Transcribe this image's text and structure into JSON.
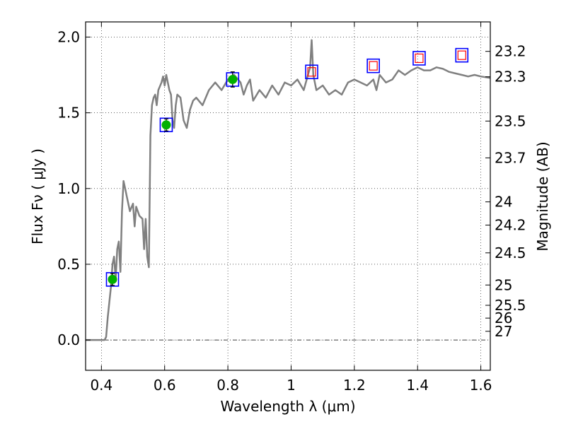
{
  "chart_data": {
    "type": "line",
    "xlabel": "Wavelength  λ (μm)",
    "ylabel": "Flux  Fν  ( μJy )",
    "ylabel2": "Magnitude (AB)",
    "xlim": [
      0.35,
      1.63
    ],
    "ylim": [
      -0.2,
      2.1
    ],
    "grid": true,
    "x_ticks": [
      {
        "value": 0.4,
        "label": "0.4"
      },
      {
        "value": 0.6,
        "label": "0.6"
      },
      {
        "value": 0.8,
        "label": "0.8"
      },
      {
        "value": 1.0,
        "label": "1"
      },
      {
        "value": 1.2,
        "label": "1.2"
      },
      {
        "value": 1.4,
        "label": "1.4"
      },
      {
        "value": 1.6,
        "label": "1.6"
      }
    ],
    "y_ticks": [
      {
        "value": 0.0,
        "label": "0.0"
      },
      {
        "value": 0.5,
        "label": "0.5"
      },
      {
        "value": 1.0,
        "label": "1.0"
      },
      {
        "value": 1.5,
        "label": "1.5"
      },
      {
        "value": 2.0,
        "label": "2.0"
      }
    ],
    "mag_ticks": [
      {
        "flux": 1.9055,
        "label": "23.2"
      },
      {
        "flux": 1.7378,
        "label": "23.3"
      },
      {
        "flux": 1.4454,
        "label": "23.5"
      },
      {
        "flux": 1.2023,
        "label": "23.7"
      },
      {
        "flux": 0.912,
        "label": "24"
      },
      {
        "flux": 0.7586,
        "label": "24.2"
      },
      {
        "flux": 0.5754,
        "label": "24.5"
      },
      {
        "flux": 0.3631,
        "label": "25"
      },
      {
        "flux": 0.2291,
        "label": "25.5"
      },
      {
        "flux": 0.1445,
        "label": "26"
      },
      {
        "flux": 0.0575,
        "label": "27"
      }
    ],
    "sed_curve": {
      "color": "#808080",
      "x": [
        0.35,
        0.4,
        0.41,
        0.415,
        0.42,
        0.43,
        0.435,
        0.44,
        0.445,
        0.45,
        0.455,
        0.46,
        0.465,
        0.47,
        0.475,
        0.48,
        0.49,
        0.5,
        0.505,
        0.51,
        0.52,
        0.53,
        0.535,
        0.54,
        0.545,
        0.55,
        0.555,
        0.56,
        0.565,
        0.57,
        0.575,
        0.58,
        0.59,
        0.595,
        0.6,
        0.605,
        0.61,
        0.615,
        0.62,
        0.625,
        0.63,
        0.635,
        0.64,
        0.65,
        0.66,
        0.67,
        0.68,
        0.69,
        0.7,
        0.72,
        0.74,
        0.76,
        0.78,
        0.8,
        0.82,
        0.84,
        0.85,
        0.86,
        0.87,
        0.88,
        0.9,
        0.92,
        0.94,
        0.96,
        0.98,
        1.0,
        1.02,
        1.04,
        1.06,
        1.065,
        1.07,
        1.08,
        1.1,
        1.12,
        1.14,
        1.16,
        1.18,
        1.2,
        1.22,
        1.24,
        1.26,
        1.27,
        1.28,
        1.3,
        1.32,
        1.34,
        1.36,
        1.38,
        1.4,
        1.42,
        1.44,
        1.46,
        1.48,
        1.5,
        1.52,
        1.54,
        1.56,
        1.58,
        1.6,
        1.63
      ],
      "y": [
        0.0,
        0.0,
        0.0,
        0.02,
        0.15,
        0.35,
        0.5,
        0.55,
        0.4,
        0.6,
        0.65,
        0.45,
        0.85,
        1.05,
        1.0,
        0.95,
        0.85,
        0.9,
        0.75,
        0.88,
        0.82,
        0.8,
        0.6,
        0.8,
        0.55,
        0.48,
        1.35,
        1.55,
        1.6,
        1.62,
        1.55,
        1.65,
        1.7,
        1.74,
        1.68,
        1.75,
        1.7,
        1.65,
        1.62,
        1.45,
        1.4,
        1.55,
        1.62,
        1.6,
        1.45,
        1.4,
        1.52,
        1.58,
        1.6,
        1.55,
        1.65,
        1.7,
        1.65,
        1.72,
        1.75,
        1.7,
        1.62,
        1.68,
        1.72,
        1.58,
        1.65,
        1.6,
        1.68,
        1.62,
        1.7,
        1.68,
        1.72,
        1.65,
        1.8,
        1.98,
        1.75,
        1.65,
        1.68,
        1.62,
        1.65,
        1.62,
        1.7,
        1.72,
        1.7,
        1.68,
        1.72,
        1.65,
        1.75,
        1.7,
        1.72,
        1.78,
        1.75,
        1.78,
        1.8,
        1.78,
        1.78,
        1.8,
        1.79,
        1.77,
        1.76,
        1.75,
        1.74,
        1.75,
        1.74,
        1.73
      ]
    },
    "photometry_points": [
      {
        "x": 0.435,
        "y": 0.4,
        "yerr": 0.04,
        "color": "#00b000"
      },
      {
        "x": 0.605,
        "y": 1.42,
        "yerr": 0.04,
        "color": "#00b000"
      },
      {
        "x": 0.815,
        "y": 1.72,
        "yerr": 0.05,
        "color": "#00b000"
      }
    ],
    "model_boxes": [
      {
        "x": 0.435,
        "y": 0.4
      },
      {
        "x": 0.605,
        "y": 1.42
      },
      {
        "x": 0.815,
        "y": 1.72
      },
      {
        "x": 1.065,
        "y": 1.77
      },
      {
        "x": 1.26,
        "y": 1.81
      },
      {
        "x": 1.405,
        "y": 1.86
      },
      {
        "x": 1.54,
        "y": 1.88
      }
    ],
    "upper_limit_squares": [
      {
        "x": 1.065,
        "y": 1.77
      },
      {
        "x": 1.26,
        "y": 1.81
      },
      {
        "x": 1.405,
        "y": 1.86
      },
      {
        "x": 1.54,
        "y": 1.88
      }
    ],
    "colors": {
      "box": "#0000ff",
      "open_square": "#ff0000",
      "point": "#00b000",
      "curve": "#808080"
    }
  }
}
